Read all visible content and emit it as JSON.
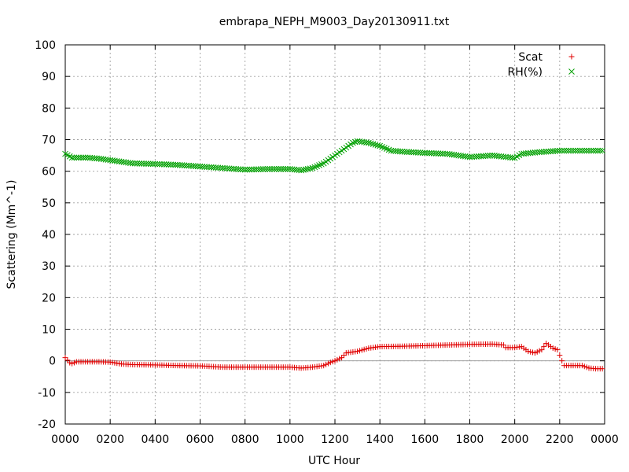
{
  "chart_data": {
    "type": "scatter",
    "title": "embrapa_NEPH_M9003_Day20130911.txt",
    "xlabel": "UTC Hour",
    "ylabel": "Scattering (Mm^-1)",
    "xlim": [
      0,
      24
    ],
    "ylim": [
      -20,
      100
    ],
    "x_ticks": [
      0,
      2,
      4,
      6,
      8,
      10,
      12,
      14,
      16,
      18,
      20,
      22,
      24
    ],
    "x_tick_labels": [
      "0000",
      "0200",
      "0400",
      "0600",
      "0800",
      "1000",
      "1200",
      "1400",
      "1600",
      "1800",
      "2000",
      "2200",
      "0000"
    ],
    "y_ticks": [
      -20,
      -10,
      0,
      10,
      20,
      30,
      40,
      50,
      60,
      70,
      80,
      90,
      100
    ],
    "y_tick_labels": [
      "-20",
      "-10",
      "0",
      "10",
      "20",
      "30",
      "40",
      "50",
      "60",
      "70",
      "80",
      "90",
      "100"
    ],
    "grid": true,
    "zero_line": true,
    "legend_position": "top-right",
    "series": [
      {
        "name": "Scat",
        "marker": "plus",
        "color": "#e00000",
        "points": [
          [
            0,
            1
          ],
          [
            0.25,
            -1
          ],
          [
            0.5,
            -0.3
          ],
          [
            1,
            -0.3
          ],
          [
            1.5,
            -0.3
          ],
          [
            2,
            -0.4
          ],
          [
            2.5,
            -1
          ],
          [
            3,
            -1.2
          ],
          [
            4,
            -1.3
          ],
          [
            5,
            -1.5
          ],
          [
            6,
            -1.6
          ],
          [
            7,
            -2
          ],
          [
            8,
            -2
          ],
          [
            9,
            -2
          ],
          [
            10,
            -2
          ],
          [
            10.5,
            -2.3
          ],
          [
            11,
            -2
          ],
          [
            11.5,
            -1.5
          ],
          [
            11.8,
            -0.5
          ],
          [
            12,
            0
          ],
          [
            12.3,
            1
          ],
          [
            12.5,
            2.5
          ],
          [
            13,
            3
          ],
          [
            13.5,
            4
          ],
          [
            14,
            4.5
          ],
          [
            15,
            4.6
          ],
          [
            16,
            4.8
          ],
          [
            17,
            5
          ],
          [
            18,
            5.2
          ],
          [
            19,
            5.3
          ],
          [
            19.5,
            5
          ],
          [
            19.6,
            4.2
          ],
          [
            20,
            4.2
          ],
          [
            20.3,
            4.5
          ],
          [
            20.6,
            3
          ],
          [
            20.9,
            2.5
          ],
          [
            21.2,
            3.5
          ],
          [
            21.4,
            5.5
          ],
          [
            21.7,
            4
          ],
          [
            21.9,
            3.5
          ],
          [
            22.1,
            0
          ],
          [
            22.2,
            -1.5
          ],
          [
            22.5,
            -1.5
          ],
          [
            23,
            -1.5
          ],
          [
            23.3,
            -2.3
          ],
          [
            23.6,
            -2.5
          ],
          [
            24,
            -2.5
          ]
        ]
      },
      {
        "name": "RH(%)",
        "marker": "cross",
        "color": "#00a000",
        "points": [
          [
            0,
            65.5
          ],
          [
            0.3,
            64.3
          ],
          [
            1,
            64.3
          ],
          [
            1.5,
            64
          ],
          [
            2,
            63.5
          ],
          [
            2.5,
            63
          ],
          [
            3,
            62.5
          ],
          [
            4,
            62.3
          ],
          [
            5,
            62
          ],
          [
            6,
            61.5
          ],
          [
            7,
            61
          ],
          [
            8,
            60.5
          ],
          [
            9,
            60.7
          ],
          [
            10,
            60.7
          ],
          [
            10.5,
            60.3
          ],
          [
            11,
            61
          ],
          [
            11.5,
            62.5
          ],
          [
            12,
            65
          ],
          [
            12.5,
            67.5
          ],
          [
            12.8,
            69
          ],
          [
            13,
            69.5
          ],
          [
            13.5,
            69
          ],
          [
            14,
            68
          ],
          [
            14.5,
            66.5
          ],
          [
            15,
            66.2
          ],
          [
            16,
            65.8
          ],
          [
            17,
            65.5
          ],
          [
            18,
            64.5
          ],
          [
            19,
            65
          ],
          [
            20,
            64.2
          ],
          [
            20.3,
            65.5
          ],
          [
            21,
            66
          ],
          [
            22,
            66.5
          ],
          [
            23,
            66.5
          ],
          [
            24,
            66.5
          ]
        ]
      }
    ]
  }
}
